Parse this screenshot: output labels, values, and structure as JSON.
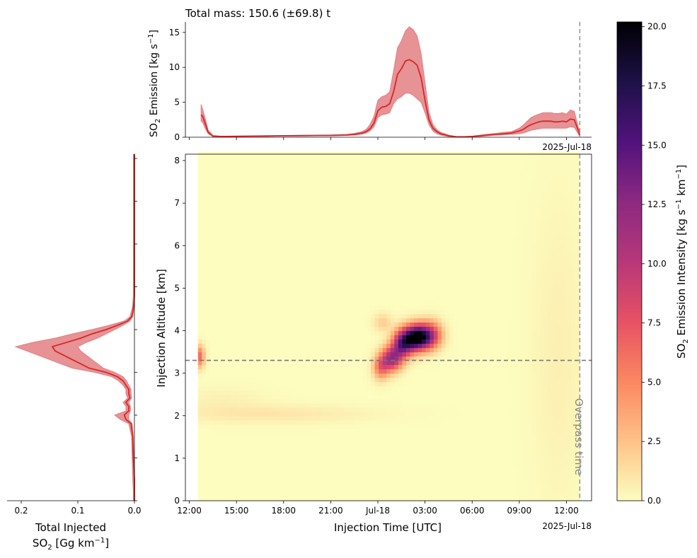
{
  "colors": {
    "series": "#d62728",
    "band": "#e37f83",
    "guide": "#777777",
    "overpass": "#999999",
    "colormap": "magma_r"
  },
  "chart_data": [
    {
      "id": "timeseries",
      "type": "line",
      "title": "Total mass: 150.6 (±69.8) t",
      "ylabel_main": "SO",
      "ylabel_sub": "2",
      "ylabel_rest": " Emission [kg s",
      "ylabel_sup": "−1",
      "ylabel_end": "]",
      "ylim": [
        0,
        16.5
      ],
      "yticks": [
        0,
        5,
        10,
        15
      ],
      "offset_label": "2025-Jul-18",
      "x": [
        12.75,
        12.85,
        13.0,
        13.2,
        13.5,
        14,
        15,
        16,
        17,
        18,
        19,
        20,
        21,
        22,
        22.5,
        23,
        23.25,
        23.5,
        23.75,
        24,
        24.25,
        24.5,
        24.75,
        25,
        25.25,
        25.5,
        25.75,
        26,
        26.25,
        26.5,
        26.75,
        27,
        27.25,
        27.5,
        27.75,
        28,
        28.5,
        29,
        29.5,
        30,
        30.5,
        31,
        31.5,
        32,
        32.5,
        33,
        33.25,
        33.5,
        33.75,
        34,
        34.25,
        34.5,
        34.75,
        35,
        35.25,
        35.5,
        35.75,
        36,
        36.25,
        36.5,
        36.75,
        36.85
      ],
      "series": [
        {
          "name": "",
          "values": [
            3.2,
            3.0,
            2.0,
            0.7,
            0.15,
            0.1,
            0.12,
            0.15,
            0.17,
            0.2,
            0.22,
            0.24,
            0.25,
            0.3,
            0.4,
            0.6,
            0.8,
            1.2,
            2.0,
            3.8,
            4.3,
            4.4,
            4.8,
            6.5,
            9.0,
            9.8,
            10.9,
            11.1,
            10.8,
            10.3,
            8.5,
            5.3,
            2.5,
            1.3,
            0.8,
            0.5,
            0.2,
            0.05,
            0.05,
            0.1,
            0.2,
            0.3,
            0.4,
            0.5,
            0.6,
            0.9,
            1.1,
            1.5,
            1.8,
            2.0,
            2.2,
            2.3,
            2.3,
            2.3,
            2.2,
            2.2,
            2.3,
            2.2,
            2.6,
            2.5,
            1.0,
            0.3
          ],
          "lower": [
            2.3,
            2.1,
            1.3,
            0.5,
            0.1,
            0.08,
            0.1,
            0.12,
            0.14,
            0.16,
            0.18,
            0.2,
            0.2,
            0.25,
            0.3,
            0.45,
            0.6,
            0.9,
            1.5,
            2.8,
            3.2,
            3.3,
            3.5,
            4.8,
            5.5,
            5.8,
            6.3,
            6.3,
            6.0,
            5.5,
            5.0,
            3.5,
            1.8,
            0.9,
            0.5,
            0.3,
            0.1,
            0.02,
            0.02,
            0.05,
            0.1,
            0.2,
            0.3,
            0.35,
            0.4,
            0.5,
            0.6,
            0.8,
            1.0,
            1.1,
            1.2,
            1.3,
            1.3,
            1.3,
            1.3,
            1.3,
            1.3,
            1.3,
            1.5,
            1.4,
            0.5,
            0.1
          ],
          "upper": [
            4.7,
            4.0,
            2.8,
            1.0,
            0.25,
            0.15,
            0.16,
            0.2,
            0.22,
            0.25,
            0.28,
            0.3,
            0.32,
            0.4,
            0.55,
            0.8,
            1.1,
            1.8,
            3.0,
            5.3,
            5.8,
            6.0,
            6.5,
            9.5,
            12.8,
            13.8,
            15.2,
            15.8,
            15.4,
            14.5,
            12.0,
            7.8,
            3.6,
            1.8,
            1.1,
            0.7,
            0.3,
            0.1,
            0.1,
            0.15,
            0.3,
            0.45,
            0.55,
            0.7,
            0.8,
            1.3,
            1.7,
            2.3,
            2.8,
            3.1,
            3.3,
            3.5,
            3.5,
            3.5,
            3.4,
            3.4,
            3.5,
            3.3,
            3.9,
            3.7,
            1.5,
            0.6
          ]
        }
      ]
    },
    {
      "id": "profile",
      "type": "line",
      "xlabel_line1": "Total Injected",
      "xlabel_main": "SO",
      "xlabel_sub": "2",
      "xlabel_rest": " [Gg km",
      "xlabel_sup": "−1",
      "xlabel_end": "]",
      "xlim": [
        0.225,
        0
      ],
      "xticks": [
        0.2,
        0.1,
        0.0
      ],
      "xtick_labels": [
        "0.2",
        "0.1",
        "0.0"
      ],
      "ylim": [
        0,
        8.1
      ],
      "alt": [
        0,
        0.2,
        0.5,
        1.0,
        1.5,
        1.8,
        1.9,
        2.0,
        2.1,
        2.2,
        2.3,
        2.4,
        2.5,
        2.6,
        2.7,
        2.8,
        2.9,
        3.0,
        3.1,
        3.2,
        3.3,
        3.4,
        3.5,
        3.6,
        3.7,
        3.8,
        3.9,
        4.0,
        4.1,
        4.2,
        4.3,
        4.4,
        4.5,
        4.6,
        4.8,
        5.0,
        6.0,
        7.0,
        8.0,
        8.1
      ],
      "series": [
        {
          "name": "",
          "values": [
            0.0,
            0.0,
            0.0,
            0.002,
            0.003,
            0.006,
            0.015,
            0.018,
            0.01,
            0.01,
            0.015,
            0.008,
            0.01,
            0.01,
            0.015,
            0.02,
            0.03,
            0.05,
            0.08,
            0.095,
            0.11,
            0.125,
            0.14,
            0.145,
            0.12,
            0.095,
            0.075,
            0.05,
            0.03,
            0.012,
            0.005,
            0.003,
            0.002,
            0.001,
            0.0,
            0.0,
            0.0,
            0.0,
            0.0,
            0.0
          ],
          "lower": [
            0.0,
            0.0,
            0.0,
            0.001,
            0.002,
            0.004,
            0.01,
            0.01,
            0.007,
            0.007,
            0.01,
            0.005,
            0.006,
            0.006,
            0.01,
            0.014,
            0.02,
            0.035,
            0.055,
            0.065,
            0.075,
            0.085,
            0.095,
            0.1,
            0.085,
            0.065,
            0.05,
            0.035,
            0.02,
            0.008,
            0.003,
            0.002,
            0.001,
            0.0,
            0.0,
            0.0,
            0.0,
            0.0,
            0.0,
            0.0
          ],
          "upper": [
            0.002,
            0.002,
            0.003,
            0.004,
            0.005,
            0.01,
            0.025,
            0.035,
            0.015,
            0.015,
            0.02,
            0.012,
            0.015,
            0.015,
            0.02,
            0.028,
            0.04,
            0.07,
            0.11,
            0.13,
            0.15,
            0.17,
            0.19,
            0.21,
            0.18,
            0.14,
            0.11,
            0.075,
            0.045,
            0.018,
            0.008,
            0.006,
            0.004,
            0.003,
            0.002,
            0.002,
            0.002,
            0.002,
            0.002,
            0.002
          ]
        }
      ]
    },
    {
      "id": "heatmap",
      "type": "heatmap",
      "xlabel": "Injection Time [UTC]",
      "ylabel": "Injection Altitude [km]",
      "xlim": [
        11.75,
        37.6
      ],
      "ylim": [
        0,
        8.15
      ],
      "xticks": [
        12,
        15,
        18,
        21,
        24,
        27,
        30,
        33,
        36
      ],
      "xtick_labels": [
        "12:00",
        "15:00",
        "18:00",
        "21:00",
        "Jul-18",
        "03:00",
        "06:00",
        "09:00",
        "12:00"
      ],
      "yticks": [
        0,
        1,
        2,
        3,
        4,
        5,
        6,
        7,
        8
      ],
      "offset_label": "2025-Jul-18",
      "data_extent_time": [
        12.55,
        36.85
      ],
      "hotspots": [
        {
          "t": 12.6,
          "alt": 3.4,
          "value": 6.5,
          "st": 0.25,
          "sa": 0.18
        },
        {
          "t": 24.2,
          "alt": 3.15,
          "value": 6.0,
          "st": 0.35,
          "sa": 0.2
        },
        {
          "t": 24.3,
          "alt": 4.2,
          "value": 2.0,
          "st": 0.4,
          "sa": 0.15
        },
        {
          "t": 24.9,
          "alt": 3.35,
          "value": 11.0,
          "st": 0.45,
          "sa": 0.2
        },
        {
          "t": 25.6,
          "alt": 3.7,
          "value": 13.0,
          "st": 0.45,
          "sa": 0.22
        },
        {
          "t": 26.5,
          "alt": 3.85,
          "value": 20.2,
          "st": 0.55,
          "sa": 0.2
        },
        {
          "t": 27.4,
          "alt": 3.9,
          "value": 8.0,
          "st": 0.5,
          "sa": 0.22
        },
        {
          "t": 17.0,
          "alt": 2.05,
          "value": 1.0,
          "st": 4.5,
          "sa": 0.15
        },
        {
          "t": 14.0,
          "alt": 2.4,
          "value": 0.5,
          "st": 2.0,
          "sa": 0.2
        },
        {
          "t": 35.5,
          "alt": 3.5,
          "value": 0.6,
          "st": 1.2,
          "sa": 2.5
        }
      ],
      "overpass_time": 36.85,
      "overpass_label": "Overpass time",
      "reference_altitude": 3.3
    },
    {
      "id": "colorbar",
      "type": "colorbar",
      "label_main": "SO",
      "label_sub": "2",
      "label_rest": " Emission Intensity [kg s",
      "label_sup1": "−1",
      "label_mid": " km",
      "label_sup2": "−1",
      "label_end": "]",
      "range": [
        0,
        20.2
      ],
      "ticks": [
        0,
        2.5,
        5,
        7.5,
        10,
        12.5,
        15,
        17.5,
        20
      ],
      "tick_labels": [
        "0.0",
        "2.5",
        "5.0",
        "7.5",
        "10.0",
        "12.5",
        "15.0",
        "17.5",
        "20.0"
      ]
    }
  ]
}
